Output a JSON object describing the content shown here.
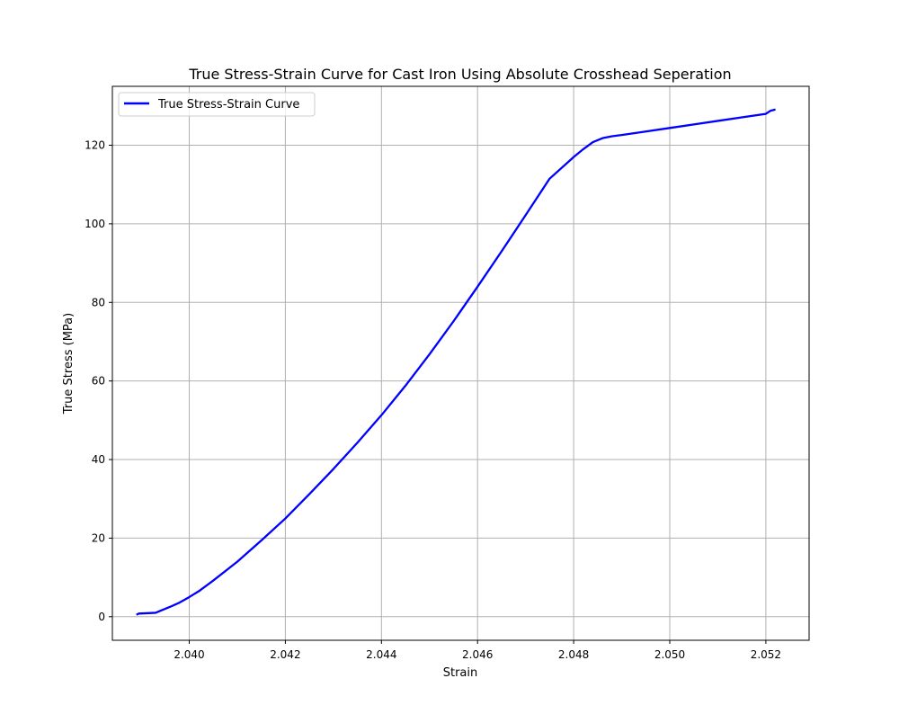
{
  "chart_data": {
    "type": "line",
    "title": "True Stress-Strain Curve for Cast Iron Using Absolute Crosshead Seperation",
    "xlabel": "Strain",
    "ylabel": "True Stress (MPa)",
    "xlim": [
      2.0384,
      2.0529
    ],
    "ylim": [
      -6,
      135
    ],
    "x_ticks": [
      2.04,
      2.042,
      2.044,
      2.046,
      2.048,
      2.05,
      2.052
    ],
    "x_tick_labels": [
      "2.040",
      "2.042",
      "2.044",
      "2.046",
      "2.048",
      "2.050",
      "2.052"
    ],
    "y_ticks": [
      0,
      20,
      40,
      60,
      80,
      100,
      120
    ],
    "y_tick_labels": [
      "0",
      "20",
      "40",
      "60",
      "80",
      "100",
      "120"
    ],
    "grid": true,
    "legend_position": "top-left",
    "series": [
      {
        "name": "True Stress-Strain Curve",
        "color": "#0000ff",
        "x": [
          2.0389,
          2.03895,
          2.0393,
          2.0394,
          2.0396,
          2.0398,
          2.04,
          2.0402,
          2.0405,
          2.041,
          2.0415,
          2.042,
          2.0425,
          2.043,
          2.0435,
          2.044,
          2.0445,
          2.045,
          2.0455,
          2.046,
          2.0465,
          2.047,
          2.0475,
          2.048,
          2.0482,
          2.0484,
          2.0486,
          2.0488,
          2.049,
          2.0495,
          2.05,
          2.0505,
          2.051,
          2.0515,
          2.052,
          2.0521,
          2.0522
        ],
        "y": [
          0.5,
          0.8,
          1.0,
          1.5,
          2.5,
          3.6,
          5.0,
          6.5,
          9.2,
          14.0,
          19.4,
          25.0,
          31.2,
          37.6,
          44.3,
          51.3,
          58.8,
          66.8,
          75.2,
          84.0,
          93.0,
          102.2,
          111.5,
          117.0,
          119.0,
          120.8,
          121.8,
          122.3,
          122.6,
          123.5,
          124.4,
          125.3,
          126.2,
          127.1,
          128.0,
          128.8,
          129.1
        ]
      }
    ]
  }
}
